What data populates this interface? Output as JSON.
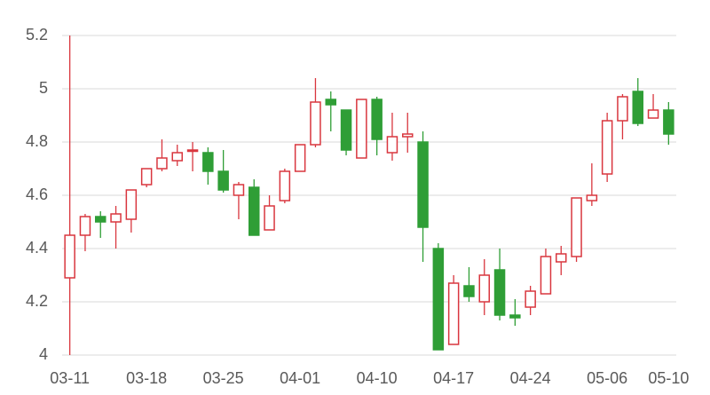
{
  "chart_data": {
    "type": "candlestick",
    "categories": [
      "03-11",
      null,
      null,
      null,
      null,
      "03-18",
      null,
      null,
      null,
      null,
      "03-25",
      null,
      null,
      null,
      null,
      "04-01",
      null,
      null,
      null,
      null,
      "04-10",
      null,
      null,
      null,
      null,
      "04-17",
      null,
      null,
      null,
      null,
      "04-24",
      null,
      null,
      null,
      null,
      "05-06",
      null,
      null,
      null,
      "05-10"
    ],
    "open": [
      4.29,
      4.45,
      4.52,
      4.5,
      4.51,
      4.64,
      4.7,
      4.73,
      4.77,
      4.76,
      4.69,
      4.6,
      4.63,
      4.47,
      4.58,
      4.69,
      4.79,
      4.96,
      4.92,
      4.74,
      4.96,
      4.76,
      4.82,
      4.8,
      4.4,
      4.04,
      4.26,
      4.2,
      4.32,
      4.15,
      4.18,
      4.23,
      4.35,
      4.37,
      4.58,
      4.68,
      4.88,
      4.99,
      4.89,
      4.92
    ],
    "high": [
      5.2,
      4.53,
      4.54,
      4.56,
      4.62,
      4.7,
      4.81,
      4.79,
      4.8,
      4.78,
      4.77,
      4.65,
      4.66,
      4.6,
      4.7,
      4.79,
      5.04,
      4.99,
      4.92,
      4.96,
      4.97,
      4.91,
      4.91,
      4.84,
      4.42,
      4.3,
      4.33,
      4.36,
      4.4,
      4.21,
      4.26,
      4.4,
      4.41,
      4.59,
      4.72,
      4.91,
      4.98,
      5.04,
      4.98,
      4.95
    ],
    "low": [
      4.0,
      4.39,
      4.44,
      4.4,
      4.46,
      4.63,
      4.69,
      4.71,
      4.69,
      4.64,
      4.61,
      4.51,
      4.45,
      4.47,
      4.57,
      4.69,
      4.78,
      4.84,
      4.75,
      4.74,
      4.75,
      4.73,
      4.76,
      4.35,
      4.02,
      4.04,
      4.2,
      4.15,
      4.13,
      4.11,
      4.15,
      4.23,
      4.3,
      4.35,
      4.56,
      4.65,
      4.81,
      4.86,
      4.89,
      4.79
    ],
    "close": [
      4.45,
      4.52,
      4.5,
      4.53,
      4.62,
      4.7,
      4.74,
      4.76,
      4.77,
      4.69,
      4.62,
      4.64,
      4.45,
      4.56,
      4.69,
      4.79,
      4.95,
      4.94,
      4.77,
      4.96,
      4.81,
      4.82,
      4.83,
      4.48,
      4.02,
      4.27,
      4.22,
      4.3,
      4.15,
      4.14,
      4.24,
      4.37,
      4.38,
      4.59,
      4.6,
      4.88,
      4.97,
      4.87,
      4.92,
      4.83
    ],
    "up_color": "#d9363e",
    "down_color": "#2f9e36",
    "ylim": [
      4,
      5.2
    ],
    "yticks": [
      4,
      4.2,
      4.4,
      4.6,
      4.8,
      5,
      5.2
    ],
    "grid": true
  }
}
